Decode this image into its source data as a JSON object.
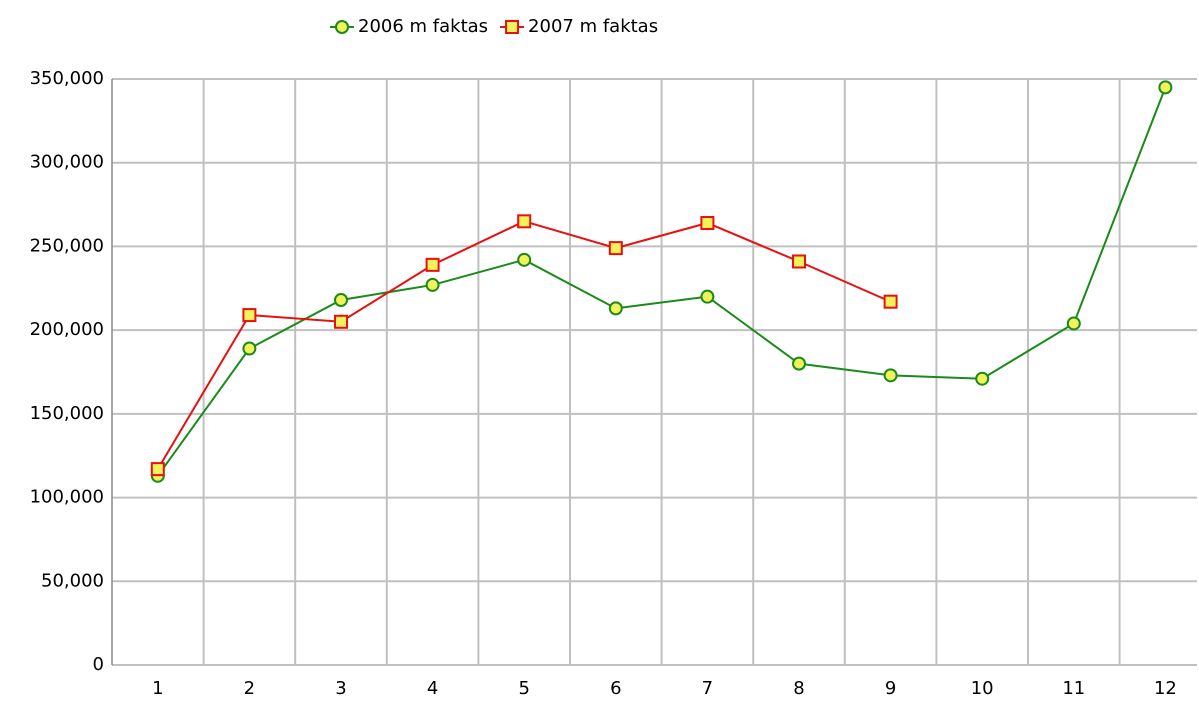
{
  "chart_data": {
    "type": "line",
    "categories": [
      "1",
      "2",
      "3",
      "4",
      "5",
      "6",
      "7",
      "8",
      "9",
      "10",
      "11",
      "12"
    ],
    "series": [
      {
        "name": "2006 m faktas",
        "color": "#1a8a1a",
        "marker": "circle",
        "marker_fill": "#f2f25a",
        "values": [
          113000,
          189000,
          218000,
          227000,
          242000,
          213000,
          220000,
          180000,
          173000,
          171000,
          204000,
          345000
        ]
      },
      {
        "name": "2007 m faktas",
        "color": "#e81010",
        "marker": "square",
        "marker_fill": "#f2f25a",
        "values": [
          117000,
          209000,
          205000,
          239000,
          265000,
          249000,
          264000,
          241000,
          217000,
          null,
          null,
          null
        ]
      }
    ],
    "ylim": [
      0,
      350000
    ],
    "yticks": [
      0,
      {
        "value": 50000,
        "label": "50,000"
      },
      {
        "value": 100000,
        "label": "100,000"
      },
      {
        "value": 150000,
        "label": "150,000"
      },
      {
        "value": 200000,
        "label": "200,000"
      },
      {
        "value": 250000,
        "label": "250,000"
      },
      {
        "value": 300000,
        "label": "300,000"
      },
      {
        "value": 350000,
        "label": "350,000"
      }
    ],
    "grid": true,
    "legend": "top"
  }
}
